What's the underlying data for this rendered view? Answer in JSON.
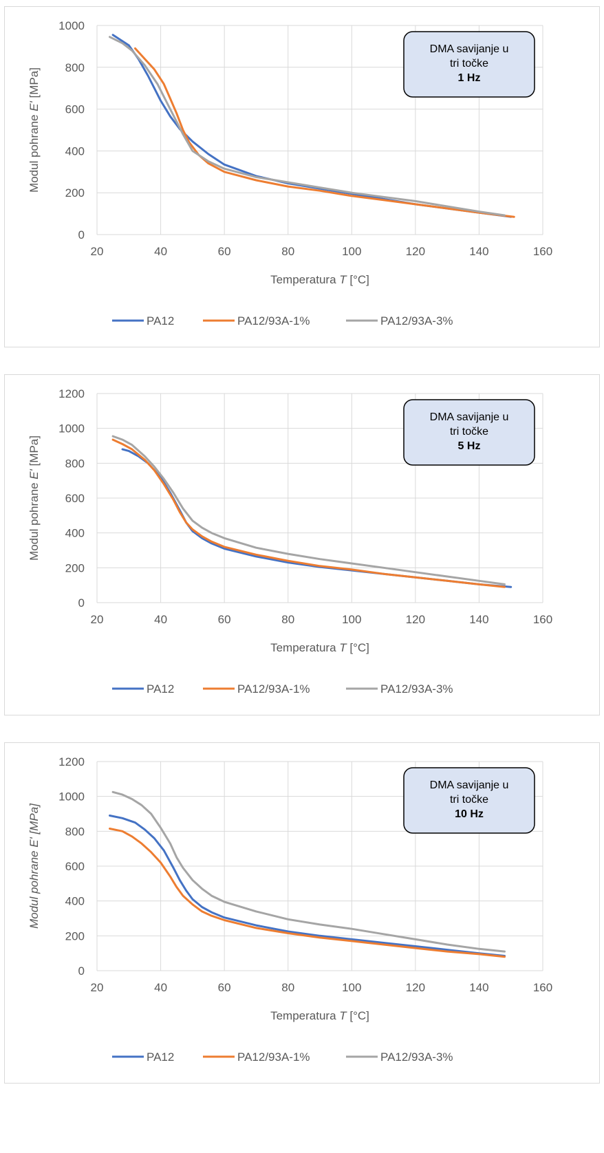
{
  "chart_data": [
    {
      "type": "line",
      "xlabel": "Temperatura T [°C]",
      "ylabel": "Modul pohrane E' [MPa]",
      "xlabel_parts": [
        "Temperatura ",
        "T",
        " [°C]"
      ],
      "ylabel_parts": [
        "Modul pohrane ",
        "E'",
        " [MPa]"
      ],
      "ylabel_italic": false,
      "xlim": [
        20,
        160
      ],
      "ylim": [
        0,
        1000
      ],
      "xticks": [
        20,
        40,
        60,
        80,
        100,
        120,
        140,
        160
      ],
      "yticks": [
        0,
        200,
        400,
        600,
        800,
        1000
      ],
      "grid": true,
      "legend_position": "bottom",
      "annotation": [
        "DMA savijanje u",
        "tri točke",
        "1 Hz"
      ],
      "series": [
        {
          "name": "PA12",
          "color": "#4472C4",
          "x": [
            25,
            30,
            33,
            36,
            40,
            43,
            46,
            48,
            50,
            55,
            60,
            70,
            80,
            90,
            100,
            110,
            120,
            130,
            140,
            150
          ],
          "y": [
            955,
            905,
            840,
            760,
            640,
            565,
            505,
            475,
            445,
            385,
            335,
            280,
            245,
            220,
            195,
            170,
            145,
            125,
            105,
            85
          ]
        },
        {
          "name": "PA12/93A-1%",
          "color": "#ED7D31",
          "x": [
            32,
            35,
            38,
            41,
            43,
            45,
            47,
            49,
            52,
            55,
            60,
            70,
            80,
            90,
            100,
            110,
            120,
            130,
            140,
            151
          ],
          "y": [
            890,
            840,
            790,
            720,
            650,
            580,
            500,
            440,
            380,
            340,
            300,
            260,
            230,
            210,
            185,
            165,
            145,
            125,
            105,
            85
          ]
        },
        {
          "name": "PA12/93A-3%",
          "color": "#A5A5A5",
          "x": [
            24,
            28,
            31,
            35,
            39,
            42,
            45,
            47,
            50,
            55,
            60,
            70,
            80,
            90,
            100,
            110,
            120,
            130,
            140,
            148
          ],
          "y": [
            945,
            915,
            880,
            810,
            720,
            630,
            540,
            480,
            400,
            350,
            315,
            275,
            250,
            225,
            200,
            180,
            160,
            135,
            110,
            92
          ]
        }
      ]
    },
    {
      "type": "line",
      "xlabel": "Temperatura T [°C]",
      "ylabel": "Modul pohrane E' [MPa]",
      "xlabel_parts": [
        "Temperatura ",
        "T",
        " [°C]"
      ],
      "ylabel_parts": [
        "Modul pohrane ",
        "E'",
        " [MPa]"
      ],
      "ylabel_italic": false,
      "xlim": [
        20,
        160
      ],
      "ylim": [
        0,
        1200
      ],
      "xticks": [
        20,
        40,
        60,
        80,
        100,
        120,
        140,
        160
      ],
      "yticks": [
        0,
        200,
        400,
        600,
        800,
        1000,
        1200
      ],
      "grid": true,
      "legend_position": "bottom",
      "annotation": [
        "DMA savijanje u",
        "tri točke",
        "5 Hz"
      ],
      "series": [
        {
          "name": "PA12",
          "color": "#4472C4",
          "x": [
            28,
            30,
            33,
            36,
            40,
            43,
            46,
            48,
            50,
            53,
            56,
            60,
            70,
            80,
            90,
            100,
            110,
            120,
            130,
            140,
            150
          ],
          "y": [
            880,
            870,
            840,
            800,
            720,
            630,
            530,
            460,
            410,
            370,
            340,
            310,
            265,
            230,
            205,
            185,
            165,
            145,
            125,
            105,
            90
          ]
        },
        {
          "name": "PA12/93A-1%",
          "color": "#ED7D31",
          "x": [
            25,
            28,
            31,
            35,
            38,
            41,
            44,
            46,
            48,
            50,
            53,
            56,
            60,
            70,
            80,
            90,
            100,
            110,
            120,
            130,
            140,
            148
          ],
          "y": [
            935,
            910,
            880,
            820,
            760,
            680,
            590,
            520,
            460,
            420,
            380,
            350,
            320,
            275,
            240,
            210,
            190,
            165,
            145,
            125,
            105,
            90
          ]
        },
        {
          "name": "PA12/93A-3%",
          "color": "#A5A5A5",
          "x": [
            25,
            28,
            31,
            35,
            38,
            41,
            44,
            47,
            50,
            53,
            56,
            60,
            70,
            80,
            90,
            100,
            110,
            120,
            130,
            140,
            148
          ],
          "y": [
            955,
            935,
            905,
            840,
            780,
            710,
            630,
            540,
            470,
            430,
            400,
            370,
            315,
            280,
            250,
            225,
            200,
            175,
            150,
            125,
            105
          ]
        }
      ]
    },
    {
      "type": "line",
      "xlabel": "Temperatura T [°C]",
      "ylabel": "Modul pohrane E' [MPa]",
      "xlabel_parts": [
        "Temperatura ",
        "T",
        " [°C]"
      ],
      "ylabel_parts": [
        "Modul pohrane ",
        "E'",
        " [MPa]"
      ],
      "ylabel_italic": true,
      "xlim": [
        20,
        160
      ],
      "ylim": [
        0,
        1200
      ],
      "xticks": [
        20,
        40,
        60,
        80,
        100,
        120,
        140,
        160
      ],
      "yticks": [
        0,
        200,
        400,
        600,
        800,
        1000,
        1200
      ],
      "grid": true,
      "legend_position": "bottom",
      "annotation": [
        "DMA savijanje u",
        "tri točke",
        "10 Hz"
      ],
      "series": [
        {
          "name": "PA12",
          "color": "#4472C4",
          "x": [
            24,
            28,
            32,
            35,
            38,
            41,
            44,
            46,
            48,
            50,
            53,
            56,
            60,
            70,
            80,
            90,
            100,
            110,
            120,
            130,
            140,
            148
          ],
          "y": [
            890,
            875,
            850,
            810,
            760,
            690,
            590,
            520,
            460,
            410,
            365,
            335,
            305,
            260,
            225,
            200,
            180,
            160,
            140,
            120,
            100,
            85
          ]
        },
        {
          "name": "PA12/93A-1%",
          "color": "#ED7D31",
          "x": [
            24,
            28,
            31,
            34,
            37,
            40,
            43,
            45,
            47,
            50,
            53,
            56,
            60,
            70,
            80,
            90,
            100,
            110,
            120,
            130,
            140,
            148
          ],
          "y": [
            815,
            800,
            770,
            730,
            680,
            620,
            540,
            480,
            430,
            380,
            340,
            315,
            290,
            245,
            215,
            190,
            170,
            150,
            130,
            110,
            95,
            80
          ]
        },
        {
          "name": "PA12/93A-3%",
          "color": "#A5A5A5",
          "x": [
            25,
            28,
            31,
            34,
            37,
            40,
            43,
            45,
            47,
            50,
            53,
            56,
            60,
            70,
            80,
            90,
            100,
            110,
            120,
            130,
            140,
            148
          ],
          "y": [
            1025,
            1010,
            985,
            950,
            900,
            820,
            730,
            650,
            590,
            520,
            470,
            430,
            395,
            340,
            295,
            265,
            240,
            210,
            180,
            150,
            125,
            110
          ]
        }
      ]
    }
  ]
}
